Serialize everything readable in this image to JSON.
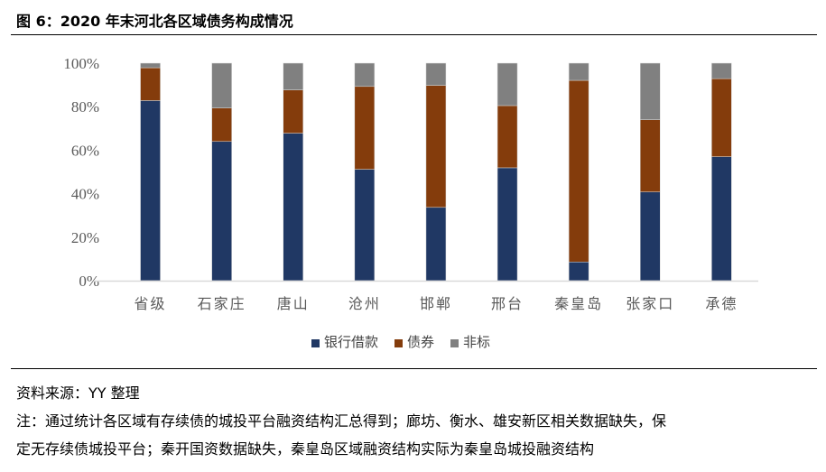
{
  "title": "图 6：2020 年末河北各区域债务构成情况",
  "chart_data": {
    "type": "bar",
    "stacked": true,
    "categories": [
      "省级",
      "石家庄",
      "唐山",
      "沧州",
      "邯郸",
      "邢台",
      "秦皇岛",
      "张家口",
      "承德"
    ],
    "series": [
      {
        "name": "银行借款",
        "color": "#203864",
        "values": [
          82.8,
          64.0,
          67.8,
          51.2,
          33.7,
          51.9,
          8.6,
          40.8,
          57.0
        ]
      },
      {
        "name": "债券",
        "color": "#843C0C",
        "values": [
          15.1,
          15.4,
          19.9,
          38.1,
          56.1,
          28.6,
          83.5,
          33.2,
          35.9
        ]
      },
      {
        "name": "非标",
        "color": "#808080",
        "values": [
          2.1,
          20.6,
          12.3,
          10.7,
          10.2,
          19.5,
          7.9,
          26.0,
          7.1
        ]
      }
    ],
    "ylim": [
      0,
      100
    ],
    "yticks": [
      "0%",
      "20%",
      "40%",
      "60%",
      "80%",
      "100%"
    ],
    "grid": false,
    "legend": "bottom"
  },
  "notes": {
    "source": "资料来源：YY 整理",
    "note_line1": "注：通过统计各区域有存续债的城投平台融资结构汇总得到；廊坊、衡水、雄安新区相关数据缺失，保",
    "note_line2": "定无存续债城投平台；秦开国资数据缺失，秦皇岛区域融资结构实际为秦皇岛城投融资结构"
  }
}
